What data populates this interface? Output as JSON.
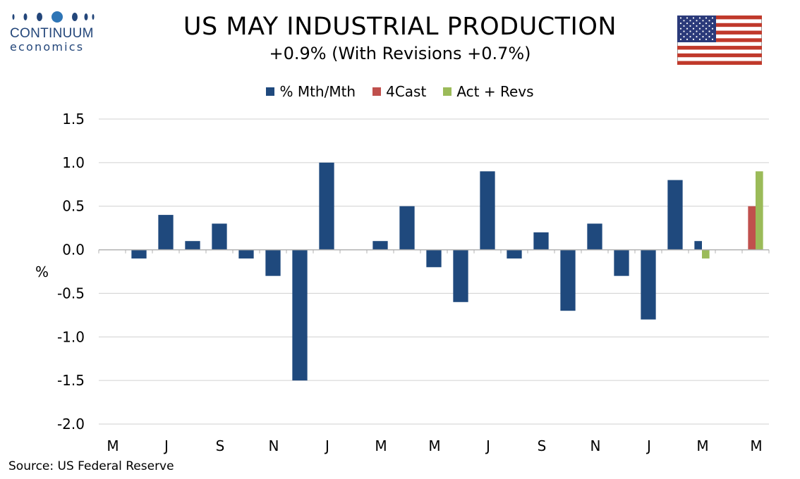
{
  "logo": {
    "name": "CONTINUUM",
    "sub": "economics"
  },
  "flag_icon": "us-flag-icon",
  "source": "Source: US Federal Reserve",
  "colors": {
    "primary": "#1f497d",
    "forecast": "#c0504d",
    "actual": "#9bbb59",
    "logo": "#23467a"
  },
  "chart_data": {
    "type": "bar",
    "title": "US MAY INDUSTRIAL PRODUCTION",
    "subtitle": "+0.9% (With Revisions +0.7%)",
    "ylabel": "%",
    "ylim": [
      -2.0,
      1.5
    ],
    "yticks": [
      "1.5",
      "1.0",
      "0.5",
      "0.0",
      "-0.5",
      "-1.0",
      "-1.5",
      "-2.0"
    ],
    "grid": true,
    "legend_position": "top-center",
    "x_tick_labels": [
      "M",
      "J",
      "S",
      "N",
      "J",
      "M",
      "M",
      "J",
      "S",
      "N",
      "J",
      "M",
      "M"
    ],
    "series": [
      {
        "name": "% Mth/Mth",
        "color": "#1f497d",
        "values": [
          null,
          -0.1,
          0.4,
          0.1,
          0.3,
          -0.1,
          -0.3,
          -1.5,
          1.0,
          null,
          0.1,
          0.5,
          -0.2,
          -0.6,
          0.9,
          -0.1,
          0.2,
          -0.7,
          0.3,
          -0.3,
          -0.8,
          0.8,
          0.1,
          null,
          null
        ]
      },
      {
        "name": "4Cast",
        "color": "#c0504d",
        "values": [
          null,
          null,
          null,
          null,
          null,
          null,
          null,
          null,
          null,
          null,
          null,
          null,
          null,
          null,
          null,
          null,
          null,
          null,
          null,
          null,
          null,
          null,
          null,
          null,
          0.5
        ]
      },
      {
        "name": "Act + Revs",
        "color": "#9bbb59",
        "values": [
          null,
          null,
          null,
          null,
          null,
          null,
          null,
          null,
          null,
          null,
          null,
          null,
          null,
          null,
          null,
          null,
          null,
          null,
          null,
          null,
          null,
          null,
          -0.1,
          null,
          0.9
        ]
      }
    ]
  }
}
